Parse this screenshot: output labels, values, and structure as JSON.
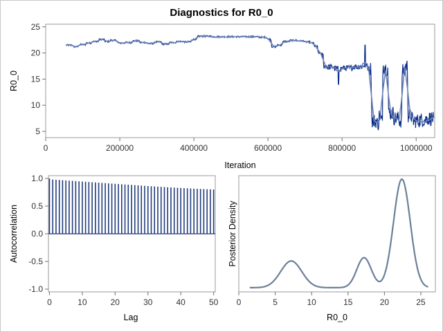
{
  "title": "Diagnostics for R0_0",
  "colors": {
    "trace_dark": "#0b2e8a",
    "trace_light": "#6e84b6",
    "acf_bar": "#1f3a7a",
    "density": "#6b7f99"
  },
  "chart_data": [
    {
      "type": "line",
      "name": "trace",
      "xlabel": "Iteration",
      "ylabel": "R0_0",
      "xlim": [
        0,
        1050000
      ],
      "ylim": [
        3.8,
        25.5
      ],
      "xticks": [
        0,
        200000,
        400000,
        600000,
        800000,
        1000000
      ],
      "xtick_labels": [
        "0",
        "200000",
        "400000",
        "600000",
        "800000",
        "1000000"
      ],
      "yticks": [
        5,
        10,
        15,
        20,
        25
      ],
      "ytick_labels": [
        "5",
        "10",
        "15",
        "20",
        "25"
      ],
      "x_start": 55000,
      "x_end": 1048000,
      "segments": [
        [
          55000,
          21.5
        ],
        [
          75000,
          21.2
        ],
        [
          90000,
          21.6
        ],
        [
          110000,
          21.9
        ],
        [
          125000,
          22.2
        ],
        [
          145000,
          22.6
        ],
        [
          160000,
          22.2
        ],
        [
          175000,
          22.4
        ],
        [
          195000,
          21.9
        ],
        [
          215000,
          22.0
        ],
        [
          235000,
          22.3
        ],
        [
          255000,
          22.0
        ],
        [
          275000,
          21.8
        ],
        [
          295000,
          22.1
        ],
        [
          315000,
          21.7
        ],
        [
          335000,
          22.0
        ],
        [
          355000,
          22.2
        ],
        [
          375000,
          22.1
        ],
        [
          395000,
          22.6
        ],
        [
          410000,
          23.2
        ],
        [
          450000,
          23.1
        ],
        [
          520000,
          23.1
        ],
        [
          580000,
          23.0
        ],
        [
          600000,
          22.6
        ],
        [
          610000,
          21.2
        ],
        [
          625000,
          21.5
        ],
        [
          640000,
          22.2
        ],
        [
          660000,
          22.4
        ],
        [
          680000,
          22.3
        ],
        [
          700000,
          22.1
        ],
        [
          715000,
          21.9
        ],
        [
          725000,
          21.3
        ],
        [
          735000,
          20.0
        ],
        [
          745000,
          19.5
        ],
        [
          750000,
          17.5
        ],
        [
          760000,
          17.3
        ],
        [
          780000,
          17.0
        ],
        [
          800000,
          17.1
        ],
        [
          830000,
          17.4
        ],
        [
          860000,
          17.6
        ],
        [
          870000,
          17.0
        ],
        [
          880000,
          7.0
        ],
        [
          895000,
          6.5
        ],
        [
          900000,
          8.0
        ],
        [
          905000,
          7.0
        ],
        [
          910000,
          17.5
        ],
        [
          918000,
          17.0
        ],
        [
          925000,
          8.5
        ],
        [
          940000,
          7.5
        ],
        [
          955000,
          7.0
        ],
        [
          962000,
          16.5
        ],
        [
          970000,
          17.5
        ],
        [
          978000,
          8.0
        ],
        [
          990000,
          7.0
        ],
        [
          1010000,
          7.2
        ],
        [
          1030000,
          7.5
        ],
        [
          1048000,
          6.5
        ]
      ]
    },
    {
      "type": "bar",
      "name": "autocorrelation",
      "xlabel": "Lag",
      "ylabel": "Autocorrelation",
      "xlim": [
        -0.3,
        50.5
      ],
      "ylim": [
        -1.05,
        1.05
      ],
      "xticks": [
        0,
        10,
        20,
        30,
        40,
        50
      ],
      "xtick_labels": [
        "0",
        "10",
        "20",
        "30",
        "40",
        "50"
      ],
      "yticks": [
        -1.0,
        -0.5,
        0.0,
        0.5,
        1.0
      ],
      "ytick_labels": [
        "-1.0",
        "-0.5",
        "0.0",
        "0.5",
        "1.0"
      ],
      "lags": [
        0,
        1,
        2,
        3,
        4,
        5,
        6,
        7,
        8,
        9,
        10,
        11,
        12,
        13,
        14,
        15,
        16,
        17,
        18,
        19,
        20,
        21,
        22,
        23,
        24,
        25,
        26,
        27,
        28,
        29,
        30,
        31,
        32,
        33,
        34,
        35,
        36,
        37,
        38,
        39,
        40,
        41,
        42,
        43,
        44,
        45,
        46,
        47,
        48,
        49,
        50
      ],
      "values": [
        1.0,
        0.98,
        0.977,
        0.973,
        0.968,
        0.964,
        0.96,
        0.956,
        0.952,
        0.948,
        0.944,
        0.94,
        0.936,
        0.932,
        0.928,
        0.924,
        0.92,
        0.915,
        0.911,
        0.907,
        0.903,
        0.899,
        0.895,
        0.891,
        0.887,
        0.883,
        0.879,
        0.875,
        0.871,
        0.867,
        0.863,
        0.859,
        0.856,
        0.852,
        0.848,
        0.845,
        0.841,
        0.838,
        0.834,
        0.831,
        0.828,
        0.825,
        0.822,
        0.819,
        0.816,
        0.813,
        0.81,
        0.808,
        0.805,
        0.803,
        0.8
      ]
    },
    {
      "type": "line",
      "name": "density",
      "xlabel": "R0_0",
      "ylabel": "Posterior Density",
      "xlim": [
        0,
        27
      ],
      "xticks": [
        0,
        5,
        10,
        15,
        20,
        25
      ],
      "xtick_labels": [
        "0",
        "5",
        "10",
        "15",
        "20",
        "25"
      ],
      "components": [
        {
          "mean": 7.2,
          "sd": 1.45,
          "weight": 0.2
        },
        {
          "mean": 17.2,
          "sd": 1.0,
          "weight": 0.155
        },
        {
          "mean": 22.4,
          "sd": 1.15,
          "weight": 0.645
        }
      ],
      "x_range": [
        1.5,
        26.0
      ],
      "baseline_value": 0.0015
    }
  ]
}
